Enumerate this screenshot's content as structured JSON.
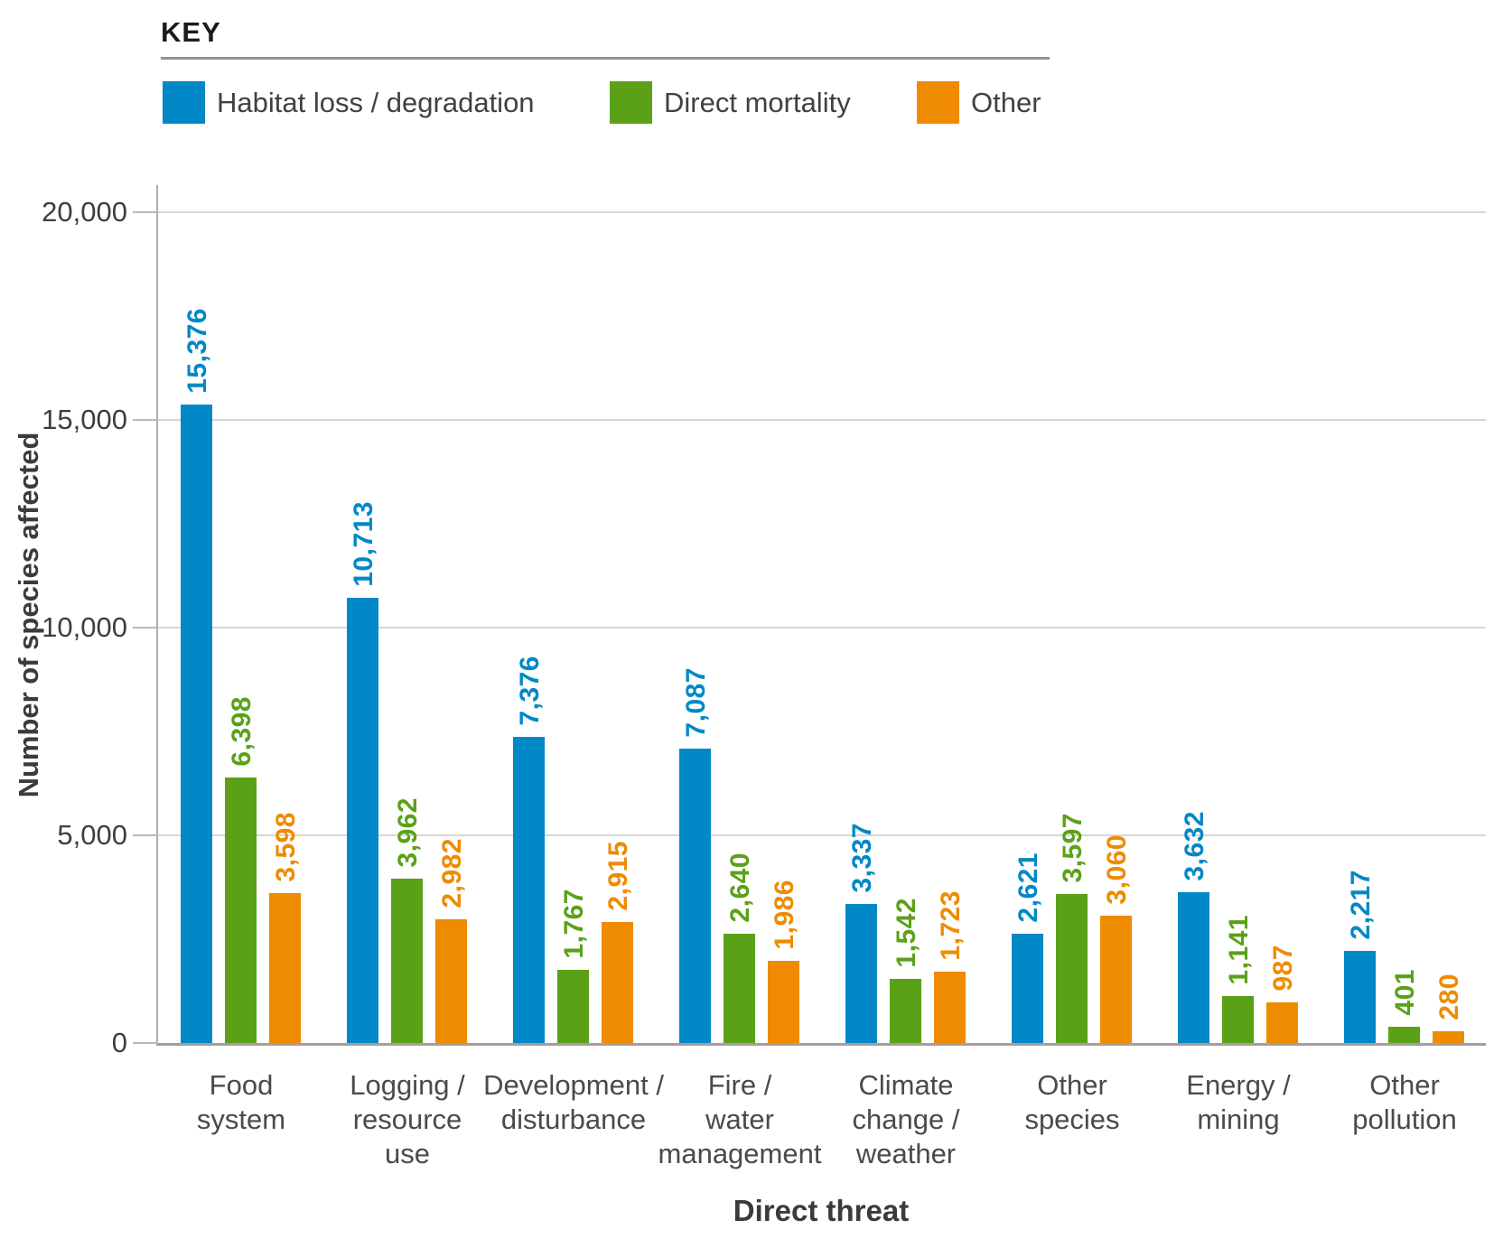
{
  "key": {
    "title": "KEY",
    "items": [
      {
        "label": "Habitat loss / degradation",
        "color": "#0088c7"
      },
      {
        "label": "Direct mortality",
        "color": "#5aa118"
      },
      {
        "label": "Other",
        "color": "#ef8b00"
      }
    ]
  },
  "axes": {
    "y_title": "Number of species affected",
    "x_title": "Direct threat",
    "y_tick_labels": [
      "0",
      "5,000",
      "10,000",
      "15,000",
      "20,000"
    ]
  },
  "chart_data": {
    "type": "bar",
    "title": "",
    "xlabel": "Direct threat",
    "ylabel": "Number of species affected",
    "ylim": [
      0,
      20000
    ],
    "yticks": [
      0,
      5000,
      10000,
      15000,
      20000
    ],
    "grid": true,
    "legend_position": "top-left",
    "categories": [
      "Food system",
      "Logging / resource use",
      "Development / disturbance",
      "Fire / water management",
      "Climate change / weather",
      "Other species",
      "Energy / mining",
      "Other pollution"
    ],
    "category_label_lines": [
      [
        "Food",
        "system"
      ],
      [
        "Logging /",
        "resource",
        "use"
      ],
      [
        "Development /",
        "disturbance"
      ],
      [
        "Fire /",
        "water",
        "management"
      ],
      [
        "Climate",
        "change /",
        "weather"
      ],
      [
        "Other",
        "species"
      ],
      [
        "Energy /",
        "mining"
      ],
      [
        "Other",
        "pollution"
      ]
    ],
    "series": [
      {
        "name": "Habitat loss / degradation",
        "color": "#0088c7",
        "values": [
          15376,
          10713,
          7376,
          7087,
          3337,
          2621,
          3632,
          2217
        ]
      },
      {
        "name": "Direct mortality",
        "color": "#5aa118",
        "values": [
          6398,
          3962,
          1767,
          2640,
          1542,
          3597,
          1141,
          401
        ]
      },
      {
        "name": "Other",
        "color": "#ef8b00",
        "values": [
          3598,
          2982,
          2915,
          1986,
          1723,
          3060,
          987,
          280
        ]
      }
    ]
  }
}
